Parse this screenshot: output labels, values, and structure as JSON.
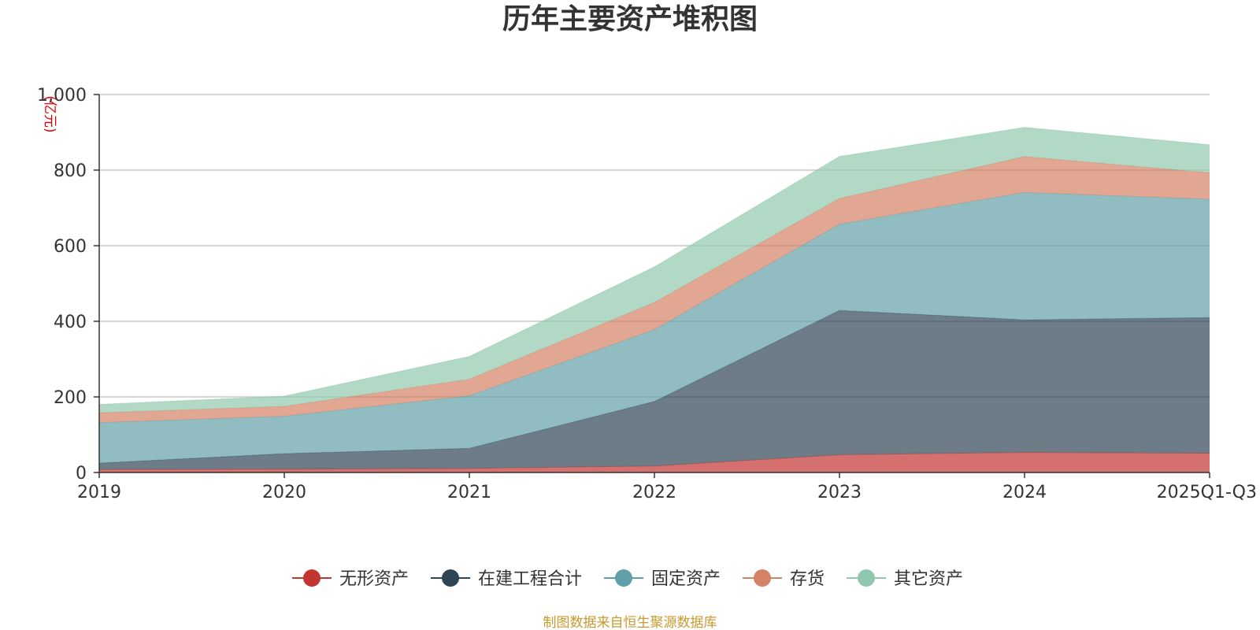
{
  "chart_data": {
    "type": "area",
    "stacked": true,
    "title": "历年主要资产堆积图",
    "unit_label": "(亿元)",
    "x": [
      "2019",
      "2020",
      "2021",
      "2022",
      "2023",
      "2024",
      "2025Q1-Q3"
    ],
    "ylim": [
      0,
      1000
    ],
    "yticks": [
      0,
      200,
      400,
      600,
      800,
      1000
    ],
    "ytick_labels": [
      "0",
      "200",
      "400",
      "600",
      "800",
      "1,000"
    ],
    "grid": true,
    "legend_position": "bottom",
    "series": [
      {
        "name": "无形资产",
        "color": "#c23531",
        "values": [
          8,
          9,
          11,
          17,
          47,
          53,
          51
        ]
      },
      {
        "name": "在建工程合计",
        "color": "#2f4554",
        "values": [
          17,
          41,
          53,
          171,
          382,
          351,
          359
        ]
      },
      {
        "name": "固定资产",
        "color": "#61a0a8",
        "values": [
          107,
          99,
          139,
          190,
          228,
          337,
          313
        ]
      },
      {
        "name": "存货",
        "color": "#d48265",
        "values": [
          26,
          26,
          44,
          72,
          68,
          95,
          70
        ]
      },
      {
        "name": "其它资产",
        "color": "#91c7ae",
        "values": [
          22,
          27,
          60,
          94,
          111,
          77,
          74
        ]
      }
    ],
    "source": "制图数据来自恒生聚源数据库"
  }
}
